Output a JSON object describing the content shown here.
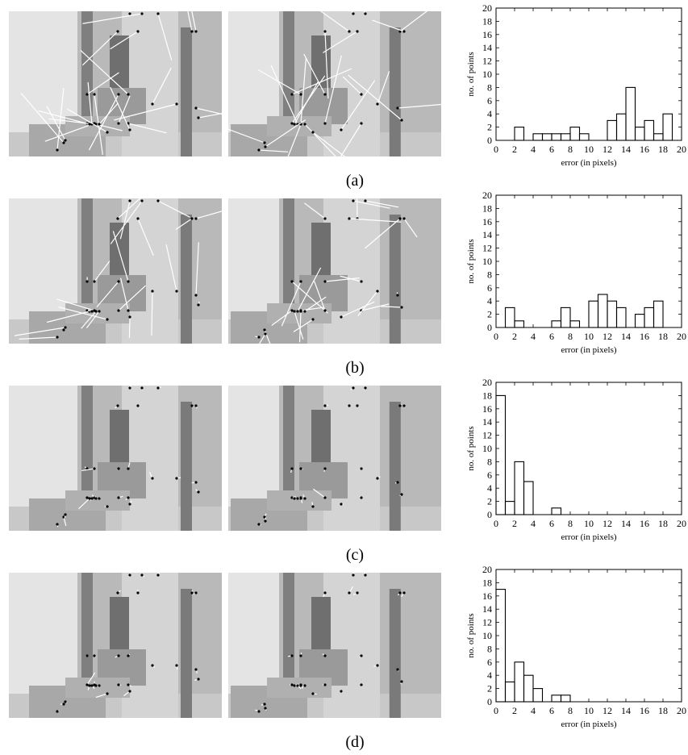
{
  "labels": {
    "xlabel": "error (in pixels)",
    "ylabel": "no. of points"
  },
  "panels": [
    {
      "caption": "(a)",
      "quality": 0
    },
    {
      "caption": "(b)",
      "quality": 1
    },
    {
      "caption": "(c)",
      "quality": 2
    },
    {
      "caption": "(d)",
      "quality": 3
    }
  ],
  "chart_data": [
    {
      "type": "bar",
      "panel": "(a)",
      "xlabel": "error (in pixels)",
      "ylabel": "no. of points",
      "xlim": [
        0,
        20
      ],
      "ylim": [
        0,
        20
      ],
      "xticks": [
        0,
        2,
        4,
        6,
        8,
        10,
        12,
        14,
        16,
        18,
        20
      ],
      "yticks": [
        0,
        2,
        4,
        6,
        8,
        10,
        12,
        14,
        16,
        18,
        20
      ],
      "grid": false,
      "bin_width": 1,
      "bins": [
        0,
        1,
        2,
        3,
        4,
        5,
        6,
        7,
        8,
        9,
        10,
        11,
        12,
        13,
        14,
        15,
        16,
        17,
        18,
        19
      ],
      "values": [
        0,
        0,
        2,
        0,
        1,
        1,
        1,
        1,
        2,
        1,
        0,
        0,
        3,
        4,
        8,
        2,
        3,
        1,
        4,
        0
      ]
    },
    {
      "type": "bar",
      "panel": "(b)",
      "xlabel": "error (in pixels)",
      "ylabel": "no. of points",
      "xlim": [
        0,
        20
      ],
      "ylim": [
        0,
        20
      ],
      "xticks": [
        0,
        2,
        4,
        6,
        8,
        10,
        12,
        14,
        16,
        18,
        20
      ],
      "yticks": [
        0,
        2,
        4,
        6,
        8,
        10,
        12,
        14,
        16,
        18,
        20
      ],
      "grid": false,
      "bin_width": 1,
      "bins": [
        0,
        1,
        2,
        3,
        4,
        5,
        6,
        7,
        8,
        9,
        10,
        11,
        12,
        13,
        14,
        15,
        16,
        17,
        18,
        19
      ],
      "values": [
        0,
        3,
        1,
        0,
        0,
        0,
        1,
        3,
        1,
        0,
        4,
        5,
        4,
        3,
        0,
        2,
        3,
        4,
        0,
        0
      ]
    },
    {
      "type": "bar",
      "panel": "(c)",
      "xlabel": "error (in pixels)",
      "ylabel": "no. of points",
      "xlim": [
        0,
        20
      ],
      "ylim": [
        0,
        20
      ],
      "xticks": [
        0,
        2,
        4,
        6,
        8,
        10,
        12,
        14,
        16,
        18,
        20
      ],
      "yticks": [
        0,
        2,
        4,
        6,
        8,
        10,
        12,
        14,
        16,
        18,
        20
      ],
      "grid": false,
      "bin_width": 1,
      "bins": [
        0,
        1,
        2,
        3,
        4,
        5,
        6,
        7,
        8,
        9,
        10,
        11,
        12,
        13,
        14,
        15,
        16,
        17,
        18,
        19
      ],
      "values": [
        18,
        2,
        8,
        5,
        0,
        0,
        1,
        0,
        0,
        0,
        0,
        0,
        0,
        0,
        0,
        0,
        0,
        0,
        0,
        0
      ]
    },
    {
      "type": "bar",
      "panel": "(d)",
      "xlabel": "error (in pixels)",
      "ylabel": "no. of points",
      "xlim": [
        0,
        20
      ],
      "ylim": [
        0,
        20
      ],
      "xticks": [
        0,
        2,
        4,
        6,
        8,
        10,
        12,
        14,
        16,
        18,
        20
      ],
      "yticks": [
        0,
        2,
        4,
        6,
        8,
        10,
        12,
        14,
        16,
        18,
        20
      ],
      "grid": false,
      "bin_width": 1,
      "bins": [
        0,
        1,
        2,
        3,
        4,
        5,
        6,
        7,
        8,
        9,
        10,
        11,
        12,
        13,
        14,
        15,
        16,
        17,
        18,
        19
      ],
      "values": [
        17,
        3,
        6,
        4,
        2,
        0,
        1,
        1,
        0,
        0,
        0,
        0,
        0,
        0,
        0,
        0,
        0,
        0,
        0,
        0
      ]
    }
  ]
}
